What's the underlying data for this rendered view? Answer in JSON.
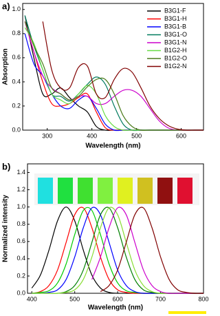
{
  "chart_data": [
    {
      "type": "line",
      "title": "a)",
      "x_label": "Wavelength (nm)",
      "y_label": "Absorption",
      "x": [
        250,
        270,
        290,
        310,
        330,
        350,
        370,
        390,
        410,
        430,
        450,
        470,
        490,
        510,
        530,
        550,
        570,
        590,
        610,
        630,
        650
      ],
      "xlim": [
        245,
        650
      ],
      "xticks": [
        300,
        400,
        500,
        600
      ],
      "ylim": [
        0,
        1.05
      ],
      "yticks": [
        {
          "value": 0,
          "label": "0.0"
        },
        {
          "value": 0.2,
          "label": "0.2"
        },
        {
          "value": 0.4,
          "label": "0.4"
        },
        {
          "value": 0.6,
          "label": "0.6"
        },
        {
          "value": 0.8,
          "label": "0.8"
        },
        {
          "value": 1,
          "label": "1.0"
        }
      ],
      "legend": "upper right",
      "series": [
        {
          "name": "B3G1-F",
          "color": "#000000",
          "values": [
            0.95,
            0.6,
            0.3,
            0.3,
            0.35,
            0.27,
            0.2,
            0.15,
            0.03,
            0,
            0,
            0,
            0,
            0,
            0,
            0,
            0,
            0,
            0,
            0,
            0
          ]
        },
        {
          "name": "B3G1-H",
          "color": "#ff0000",
          "values": [
            0.9,
            0.65,
            0.4,
            0.22,
            0.2,
            0.22,
            0.27,
            0.3,
            0.15,
            0.02,
            0,
            0,
            0,
            0,
            0,
            0,
            0,
            0,
            0,
            0,
            0
          ]
        },
        {
          "name": "B3G1-B",
          "color": "#0000ff",
          "values": [
            0.8,
            0.55,
            0.45,
            0.3,
            0.2,
            0.18,
            0.25,
            0.28,
            0.18,
            0.05,
            0,
            0,
            0,
            0,
            0,
            0,
            0,
            0,
            0,
            0,
            0
          ]
        },
        {
          "name": "B3G1-O",
          "color": "#007a5e",
          "values": [
            0.95,
            0.7,
            0.5,
            0.3,
            0.28,
            0.24,
            0.3,
            0.38,
            0.44,
            0.38,
            0.2,
            0.05,
            0,
            0,
            0,
            0,
            0,
            0,
            0,
            0,
            0
          ]
        },
        {
          "name": "B3G1-N",
          "color": "#cc00cc",
          "values": [
            0.9,
            0.65,
            0.45,
            0.35,
            0.3,
            0.25,
            0.28,
            0.28,
            0.22,
            0.22,
            0.28,
            0.33,
            0.33,
            0.28,
            0.18,
            0.08,
            0.02,
            0,
            0,
            0,
            0
          ]
        },
        {
          "name": "B1G2-H",
          "color": "#66dd44",
          "values": [
            0.85,
            0.72,
            0.5,
            0.3,
            0.25,
            0.22,
            0.3,
            0.37,
            0.3,
            0.12,
            0.03,
            0,
            0,
            0,
            0,
            0,
            0,
            0,
            0,
            0,
            0
          ]
        },
        {
          "name": "B1G2-O",
          "color": "#4a7a1a",
          "values": [
            0.9,
            0.7,
            0.55,
            0.35,
            0.3,
            0.25,
            0.28,
            0.36,
            0.42,
            0.42,
            0.3,
            0.12,
            0.03,
            0,
            0,
            0,
            0,
            0,
            0,
            0,
            0
          ]
        },
        {
          "name": "B1G2-N",
          "color": "#800000",
          "values": [
            null,
            null,
            0.9,
            0.5,
            0.35,
            0.35,
            0.52,
            0.53,
            0.3,
            0.27,
            0.42,
            0.51,
            0.48,
            0.35,
            0.2,
            0.1,
            0.04,
            0.01,
            0,
            0,
            0
          ]
        }
      ]
    },
    {
      "type": "line",
      "title": "b)",
      "x_label": "Wavelength (nm)",
      "y_label": "Normalized intensity",
      "x": [
        400,
        420,
        440,
        460,
        480,
        500,
        520,
        540,
        560,
        580,
        600,
        620,
        640,
        660,
        680,
        700,
        720,
        740,
        760,
        780,
        800
      ],
      "xlim": [
        390,
        800
      ],
      "xticks": [
        400,
        500,
        600,
        700,
        800
      ],
      "ylim": [
        0,
        1.5
      ],
      "yticks": [
        {
          "value": 0,
          "label": "0.0"
        },
        {
          "value": 0.2,
          "label": "0.2"
        },
        {
          "value": 0.4,
          "label": "0.4"
        },
        {
          "value": 0.6,
          "label": "0.6"
        },
        {
          "value": 0.8,
          "label": "0.8"
        },
        {
          "value": 1,
          "label": "1.0"
        },
        {
          "value": 1.2,
          "label": "1.2"
        },
        {
          "value": 1.4,
          "label": "1.4"
        }
      ],
      "series": [
        {
          "color": "#000000",
          "values": [
            0.06,
            0.21,
            0.5,
            0.84,
            1,
            0.84,
            0.5,
            0.21,
            0.06,
            0.01,
            0,
            0,
            0,
            0,
            0,
            0,
            0,
            0,
            0,
            0,
            0
          ]
        },
        {
          "color": "#ff0000",
          "values": [
            0,
            0.02,
            0.09,
            0.27,
            0.59,
            0.91,
            0.99,
            0.76,
            0.42,
            0.16,
            0.04,
            0.01,
            0,
            0,
            0,
            0,
            0,
            0,
            0,
            0,
            0
          ]
        },
        {
          "color": "#00cc00",
          "values": [
            0,
            0.01,
            0.03,
            0.12,
            0.34,
            0.68,
            0.96,
            0.96,
            0.68,
            0.34,
            0.12,
            0.03,
            0.01,
            0,
            0,
            0,
            0,
            0,
            0,
            0,
            0
          ]
        },
        {
          "color": "#0000ff",
          "values": [
            0,
            0,
            0.01,
            0.04,
            0.16,
            0.42,
            0.76,
            0.99,
            0.91,
            0.59,
            0.27,
            0.09,
            0.02,
            0,
            0,
            0,
            0,
            0,
            0,
            0,
            0
          ]
        },
        {
          "color": "#008000",
          "values": [
            0,
            0,
            0,
            0,
            0.02,
            0.09,
            0.27,
            0.59,
            0.91,
            0.99,
            0.76,
            0.42,
            0.16,
            0.04,
            0.01,
            0,
            0,
            0,
            0,
            0,
            0
          ]
        },
        {
          "color": "#88dd33",
          "values": [
            0,
            0,
            0,
            0,
            0.01,
            0.04,
            0.16,
            0.42,
            0.76,
            0.99,
            0.91,
            0.59,
            0.27,
            0.09,
            0.02,
            0,
            0,
            0,
            0,
            0,
            0
          ]
        },
        {
          "color": "#cc00cc",
          "values": [
            null,
            null,
            null,
            null,
            null,
            null,
            null,
            0.16,
            0.42,
            0.76,
            0.99,
            0.91,
            0.59,
            0.27,
            0.09,
            0.02,
            0,
            0,
            0,
            0,
            0
          ]
        },
        {
          "color": "#800000",
          "values": [
            null,
            null,
            null,
            null,
            null,
            null,
            null,
            null,
            0.02,
            0.09,
            0.27,
            0.59,
            0.91,
            0.99,
            0.76,
            0.42,
            0.16,
            0.04,
            0.01,
            0,
            0
          ]
        }
      ]
    }
  ]
}
